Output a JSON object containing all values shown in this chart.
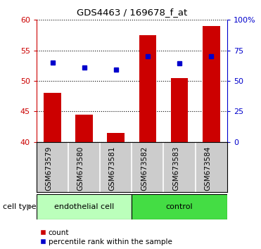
{
  "title": "GDS4463 / 169678_f_at",
  "categories": [
    "GSM673579",
    "GSM673580",
    "GSM673581",
    "GSM673582",
    "GSM673583",
    "GSM673584"
  ],
  "bar_values": [
    48.0,
    44.5,
    41.5,
    57.5,
    50.5,
    59.0
  ],
  "bar_bottom": 40.0,
  "blue_values": [
    53.0,
    52.2,
    51.8,
    54.0,
    52.9,
    54.0
  ],
  "ylim_left": [
    40,
    60
  ],
  "ylim_right": [
    0,
    100
  ],
  "yticks_left": [
    40,
    45,
    50,
    55,
    60
  ],
  "yticks_right": [
    0,
    25,
    50,
    75,
    100
  ],
  "ytick_labels_right": [
    "0",
    "25",
    "50",
    "75",
    "100%"
  ],
  "bar_color": "#cc0000",
  "blue_color": "#0000cc",
  "group_labels": [
    "endothelial cell",
    "control"
  ],
  "group_ranges": [
    [
      0,
      3
    ],
    [
      3,
      6
    ]
  ],
  "group_colors_light": "#bbffbb",
  "group_colors_dark": "#44dd44",
  "cell_type_label": "cell type",
  "legend_items": [
    "count",
    "percentile rank within the sample"
  ],
  "bar_width": 0.55,
  "tick_area_color": "#cccccc",
  "figure_width": 3.71,
  "figure_height": 3.54,
  "dpi": 100
}
